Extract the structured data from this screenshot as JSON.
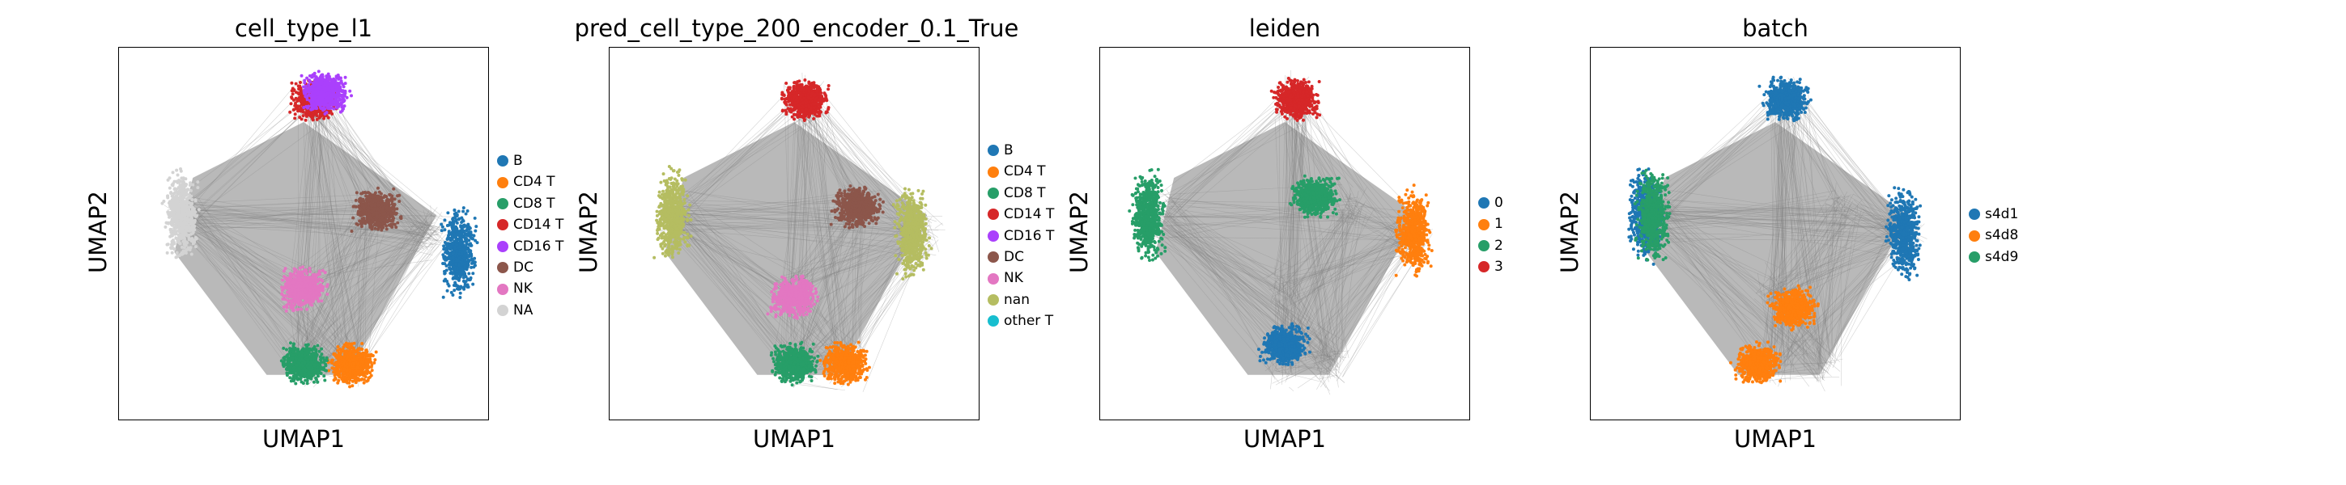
{
  "panels": [
    {
      "title": "cell_type_l1",
      "xlabel": "UMAP1",
      "ylabel": "UMAP2",
      "legend": [
        {
          "label": "B",
          "color": "#1f77b4"
        },
        {
          "label": "CD4 T",
          "color": "#ff7f0e"
        },
        {
          "label": "CD8 T",
          "color": "#279e68"
        },
        {
          "label": "CD14 T",
          "color": "#d62728"
        },
        {
          "label": "CD16 T",
          "color": "#aa40fc"
        },
        {
          "label": "DC",
          "color": "#8c564b"
        },
        {
          "label": "NK",
          "color": "#e377c2"
        },
        {
          "label": "NA",
          "color": "#d3d3d3"
        }
      ]
    },
    {
      "title": "pred_cell_type_200_encoder_0.1_True",
      "xlabel": "UMAP1",
      "ylabel": "UMAP2",
      "legend": [
        {
          "label": "B",
          "color": "#1f77b4"
        },
        {
          "label": "CD4 T",
          "color": "#ff7f0e"
        },
        {
          "label": "CD8 T",
          "color": "#279e68"
        },
        {
          "label": "CD14 T",
          "color": "#d62728"
        },
        {
          "label": "CD16 T",
          "color": "#aa40fc"
        },
        {
          "label": "DC",
          "color": "#8c564b"
        },
        {
          "label": "NK",
          "color": "#e377c2"
        },
        {
          "label": "nan",
          "color": "#b5bd61"
        },
        {
          "label": "other T",
          "color": "#17becf"
        }
      ]
    },
    {
      "title": "leiden",
      "xlabel": "UMAP1",
      "ylabel": "UMAP2",
      "legend": [
        {
          "label": "0",
          "color": "#1f77b4"
        },
        {
          "label": "1",
          "color": "#ff7f0e"
        },
        {
          "label": "2",
          "color": "#279e68"
        },
        {
          "label": "3",
          "color": "#d62728"
        }
      ]
    },
    {
      "title": "batch",
      "xlabel": "UMAP1",
      "ylabel": "UMAP2",
      "legend": [
        {
          "label": "s4d1",
          "color": "#1f77b4"
        },
        {
          "label": "s4d8",
          "color": "#ff7f0e"
        },
        {
          "label": "s4d9",
          "color": "#279e68"
        }
      ]
    }
  ],
  "chart_data": [
    {
      "type": "scatter",
      "title": "cell_type_l1",
      "xlabel": "UMAP1",
      "ylabel": "UMAP2",
      "grid": false,
      "legend_position": "right",
      "edges_color": "#808080",
      "series": [
        {
          "name": "B",
          "color": "#1f77b4",
          "x": [
            0.92
          ],
          "y": [
            0.45
          ]
        },
        {
          "name": "CD4 T",
          "color": "#ff7f0e",
          "x": [
            0.63
          ],
          "y": [
            0.15
          ]
        },
        {
          "name": "CD8 T",
          "color": "#279e68",
          "x": [
            0.5
          ],
          "y": [
            0.15
          ]
        },
        {
          "name": "CD14 T",
          "color": "#d62728",
          "x": [
            0.53
          ],
          "y": [
            0.86
          ]
        },
        {
          "name": "CD16 T",
          "color": "#aa40fc",
          "x": [
            0.56
          ],
          "y": [
            0.88
          ]
        },
        {
          "name": "DC",
          "color": "#8c564b",
          "x": [
            0.7
          ],
          "y": [
            0.56
          ]
        },
        {
          "name": "NK",
          "color": "#e377c2",
          "x": [
            0.5
          ],
          "y": [
            0.35
          ]
        },
        {
          "name": "NA",
          "color": "#d3d3d3",
          "x": [
            0.17
          ],
          "y": [
            0.55
          ]
        }
      ]
    },
    {
      "type": "scatter",
      "title": "pred_cell_type_200_encoder_0.1_True",
      "xlabel": "UMAP1",
      "ylabel": "UMAP2",
      "grid": false,
      "legend_position": "right",
      "edges_color": "#808080",
      "series": [
        {
          "name": "B",
          "color": "#1f77b4",
          "x": [],
          "y": []
        },
        {
          "name": "CD4 T",
          "color": "#ff7f0e",
          "x": [
            0.64
          ],
          "y": [
            0.15
          ]
        },
        {
          "name": "CD8 T",
          "color": "#279e68",
          "x": [
            0.5
          ],
          "y": [
            0.15
          ]
        },
        {
          "name": "CD14 T",
          "color": "#d62728",
          "x": [
            0.53
          ],
          "y": [
            0.86
          ]
        },
        {
          "name": "CD16 T",
          "color": "#aa40fc",
          "x": [],
          "y": []
        },
        {
          "name": "DC",
          "color": "#8c564b",
          "x": [
            0.67
          ],
          "y": [
            0.57
          ]
        },
        {
          "name": "NK",
          "color": "#e377c2",
          "x": [
            0.5
          ],
          "y": [
            0.33
          ]
        },
        {
          "name": "nan",
          "color": "#b5bd61",
          "x": [
            0.17,
            0.82
          ],
          "y": [
            0.55,
            0.5
          ]
        },
        {
          "name": "other T",
          "color": "#17becf",
          "x": [],
          "y": []
        }
      ]
    },
    {
      "type": "scatter",
      "title": "leiden",
      "xlabel": "UMAP1",
      "ylabel": "UMAP2",
      "grid": false,
      "legend_position": "right",
      "edges_color": "#808080",
      "series": [
        {
          "name": "0",
          "color": "#1f77b4",
          "x": [
            0.5
          ],
          "y": [
            0.2
          ]
        },
        {
          "name": "1",
          "color": "#ff7f0e",
          "x": [
            0.85
          ],
          "y": [
            0.5
          ]
        },
        {
          "name": "2",
          "color": "#279e68",
          "x": [
            0.13,
            0.58
          ],
          "y": [
            0.55,
            0.6
          ]
        },
        {
          "name": "3",
          "color": "#d62728",
          "x": [
            0.53
          ],
          "y": [
            0.86
          ]
        }
      ]
    },
    {
      "type": "scatter",
      "title": "batch",
      "xlabel": "UMAP1",
      "ylabel": "UMAP2",
      "grid": false,
      "legend_position": "right",
      "edges_color": "#808080",
      "series": [
        {
          "name": "s4d1",
          "color": "#1f77b4",
          "x": [
            0.53,
            0.85,
            0.15
          ],
          "y": [
            0.86,
            0.5,
            0.55
          ]
        },
        {
          "name": "s4d8",
          "color": "#ff7f0e",
          "x": [
            0.45,
            0.55
          ],
          "y": [
            0.15,
            0.3
          ]
        },
        {
          "name": "s4d9",
          "color": "#279e68",
          "x": [
            0.17
          ],
          "y": [
            0.55
          ]
        }
      ]
    }
  ]
}
